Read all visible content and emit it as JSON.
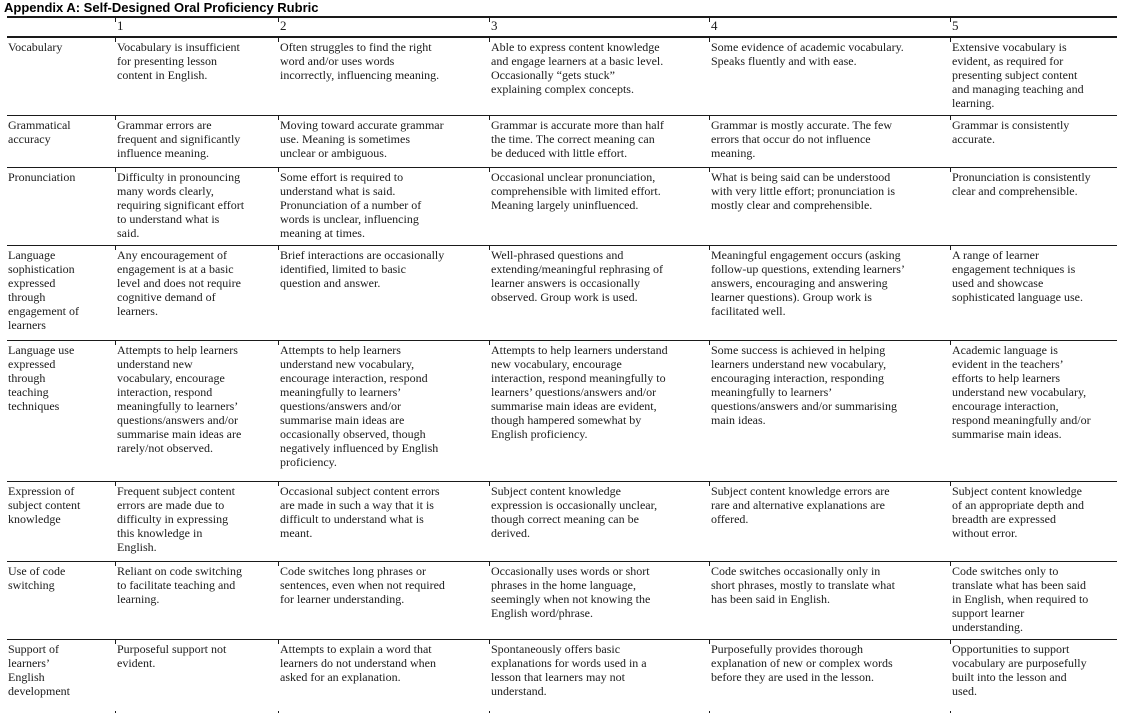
{
  "title": "Appendix A: Self-Designed Oral Proficiency Rubric",
  "table": {
    "columns": [
      "",
      "1",
      "2",
      "3",
      "4",
      "5"
    ],
    "rows": [
      {
        "label": "Vocabulary",
        "cells": [
          "Vocabulary is insufficient\nfor presenting lesson\ncontent in English.",
          "Often struggles to find the right\nword and/or uses words\nincorrectly, influencing meaning.",
          "Able to express content knowledge\nand engage learners at a basic level.\nOccasionally “gets stuck”\nexplaining complex concepts.",
          "Some evidence of academic vocabulary.\nSpeaks fluently and with ease.",
          "Extensive vocabulary is\nevident, as required for\npresenting subject content\nand managing teaching and\nlearning."
        ]
      },
      {
        "label": "Grammatical\naccuracy",
        "cells": [
          "Grammar errors are\nfrequent and significantly\ninfluence meaning.",
          "Moving toward accurate grammar\nuse. Meaning is sometimes\nunclear or ambiguous.",
          "Grammar is accurate more than half\nthe time. The correct meaning can\nbe deduced with little effort.",
          "Grammar is mostly accurate. The few\nerrors that occur do not influence\nmeaning.",
          "Grammar is consistently\naccurate."
        ]
      },
      {
        "label": "Pronunciation",
        "cells": [
          "Difficulty in pronouncing\nmany words clearly,\nrequiring significant effort\nto understand what is\nsaid.",
          "Some effort is required to\nunderstand what is said.\nPronunciation of a number of\nwords is unclear, influencing\nmeaning at times.",
          "Occasional unclear pronunciation,\ncomprehensible with limited effort.\nMeaning largely uninfluenced.",
          "What is being said can be understood\nwith very little effort; pronunciation is\nmostly clear and comprehensible.",
          "Pronunciation is consistently\nclear and comprehensible."
        ]
      },
      {
        "label": "Language\nsophistication\nexpressed\nthrough\nengagement of\nlearners",
        "cells": [
          "Any encouragement of\nengagement is at a basic\nlevel and does not require\ncognitive demand of\nlearners.",
          "Brief interactions are occasionally\nidentified, limited to basic\nquestion and answer.",
          "Well-phrased questions and\nextending/meaningful rephrasing of\nlearner answers is occasionally\nobserved. Group work is used.",
          "Meaningful engagement occurs (asking\nfollow-up questions, extending learners’\nanswers, encouraging and answering\nlearner questions). Group work is\nfacilitated well.",
          "A range of learner\nengagement techniques is\nused and showcase\nsophisticated language use."
        ]
      },
      {
        "label": "Language use\nexpressed\nthrough\nteaching\ntechniques",
        "cells": [
          "Attempts to help learners\nunderstand new\nvocabulary, encourage\ninteraction, respond\nmeaningfully to learners’\nquestions/answers and/or\nsummarise main ideas are\nrarely/not observed.",
          "Attempts to help learners\nunderstand new vocabulary,\nencourage interaction, respond\nmeaningfully to learners’\nquestions/answers and/or\nsummarise main ideas are\noccasionally observed, though\nnegatively influenced by English\nproficiency.",
          "Attempts to help learners understand\nnew vocabulary, encourage\ninteraction, respond meaningfully to\nlearners’ questions/answers and/or\nsummarise main ideas are evident,\nthough hampered somewhat by\nEnglish proficiency.",
          "Some success is achieved in helping\nlearners understand new vocabulary,\nencouraging interaction, responding\nmeaningfully to learners’\nquestions/answers and/or summarising\nmain ideas.",
          "Academic language is\nevident in the teachers’\nefforts to help learners\nunderstand new vocabulary,\nencourage interaction,\nrespond meaningfully and/or\nsummarise main ideas."
        ]
      },
      {
        "label": "Expression of\nsubject content\nknowledge",
        "cells": [
          "Frequent subject content\nerrors are made due to\ndifficulty in expressing\nthis knowledge in\nEnglish.",
          "Occasional subject content errors\nare made in such a way that it is\ndifficult to understand what is\nmeant.",
          "Subject content knowledge\nexpression is occasionally unclear,\nthough correct meaning can be\nderived.",
          "Subject content knowledge errors are\nrare and alternative explanations are\noffered.",
          "Subject content knowledge\nof an appropriate depth and\nbreadth are expressed\nwithout error."
        ]
      },
      {
        "label": "Use of code\nswitching",
        "cells": [
          "Reliant on code switching\nto facilitate teaching and\nlearning.",
          "Code switches long phrases or\nsentences, even when not required\nfor learner understanding.",
          "Occasionally uses words or short\nphrases in the home language,\nseemingly when not knowing the\nEnglish word/phrase.",
          "Code switches occasionally only in\nshort phrases, mostly to translate what\nhas been said in English.",
          "Code switches only to\ntranslate what has been said\nin English, when required to\nsupport learner\nunderstanding."
        ]
      },
      {
        "label": "Support of\nlearners’\nEnglish\ndevelopment",
        "cells": [
          "Purposeful support not\nevident.",
          "Attempts to explain a word that\nlearners do not understand when\nasked for an explanation.",
          "Spontaneously offers basic\nexplanations for words used in a\nlesson that learners may not\nunderstand.",
          "Purposefully provides thorough\nexplanation of new or complex words\nbefore they are used in the lesson.",
          "Opportunities to support\nvocabulary are purposefully\nbuilt into the lesson and\nused."
        ]
      }
    ]
  }
}
